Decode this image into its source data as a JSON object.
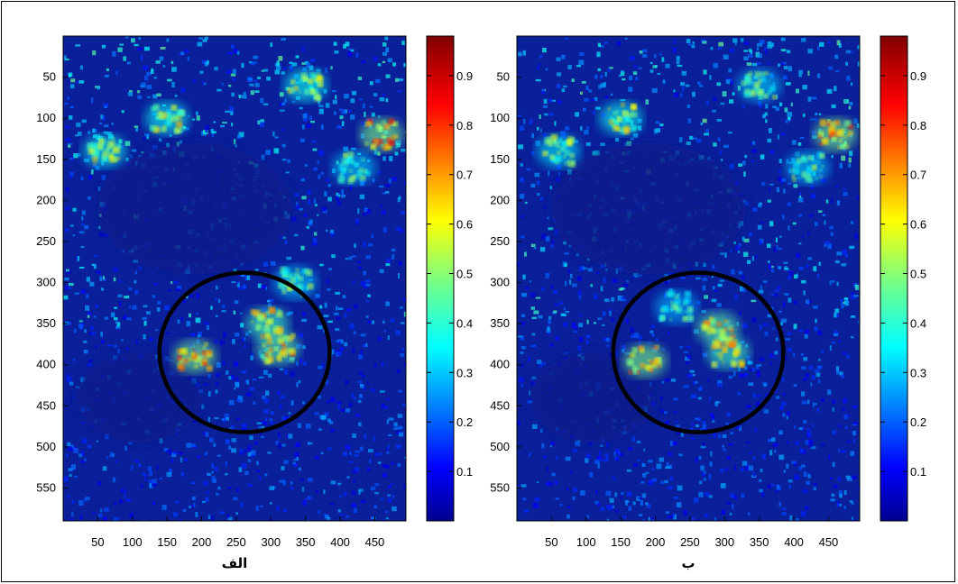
{
  "chart_data": [
    {
      "type": "heatmap",
      "caption": "الف",
      "x_ticks": [
        50,
        100,
        150,
        200,
        250,
        300,
        350,
        400,
        450
      ],
      "y_ticks": [
        50,
        100,
        150,
        200,
        250,
        300,
        350,
        400,
        450,
        500,
        550
      ],
      "xlim": [
        0,
        495
      ],
      "ylim": [
        0,
        590
      ],
      "colorbar": {
        "ticks": [
          "0.1",
          "0.2",
          "0.3",
          "0.4",
          "0.5",
          "0.6",
          "0.7",
          "0.8",
          "0.9"
        ],
        "range": [
          0,
          0.98
        ]
      },
      "hotspots": [
        {
          "x": 310,
          "y": 380,
          "value": 0.85
        },
        {
          "x": 295,
          "y": 350,
          "value": 0.8
        },
        {
          "x": 190,
          "y": 390,
          "value": 0.9
        },
        {
          "x": 335,
          "y": 300,
          "value": 0.6
        },
        {
          "x": 460,
          "y": 120,
          "value": 0.9
        },
        {
          "x": 420,
          "y": 160,
          "value": 0.6
        },
        {
          "x": 150,
          "y": 100,
          "value": 0.7
        },
        {
          "x": 60,
          "y": 140,
          "value": 0.7
        },
        {
          "x": 350,
          "y": 60,
          "value": 0.7
        }
      ],
      "circle": {
        "cx": 262,
        "cy": 385,
        "r": 117
      }
    },
    {
      "type": "heatmap",
      "caption": "ب",
      "x_ticks": [
        50,
        100,
        150,
        200,
        250,
        300,
        350,
        400,
        450
      ],
      "y_ticks": [
        50,
        100,
        150,
        200,
        250,
        300,
        350,
        400,
        450,
        500,
        550
      ],
      "xlim": [
        0,
        495
      ],
      "ylim": [
        0,
        590
      ],
      "colorbar": {
        "ticks": [
          "0.1",
          "0.2",
          "0.3",
          "0.4",
          "0.5",
          "0.6",
          "0.7",
          "0.8",
          "0.9"
        ],
        "range": [
          0,
          0.98
        ]
      },
      "hotspots": [
        {
          "x": 290,
          "y": 355,
          "value": 0.85
        },
        {
          "x": 305,
          "y": 385,
          "value": 0.8
        },
        {
          "x": 185,
          "y": 395,
          "value": 0.9
        },
        {
          "x": 230,
          "y": 330,
          "value": 0.55
        },
        {
          "x": 460,
          "y": 120,
          "value": 0.9
        },
        {
          "x": 420,
          "y": 160,
          "value": 0.6
        },
        {
          "x": 150,
          "y": 100,
          "value": 0.7
        },
        {
          "x": 60,
          "y": 140,
          "value": 0.65
        },
        {
          "x": 350,
          "y": 60,
          "value": 0.6
        }
      ],
      "circle": {
        "cx": 262,
        "cy": 385,
        "r": 117
      }
    }
  ]
}
